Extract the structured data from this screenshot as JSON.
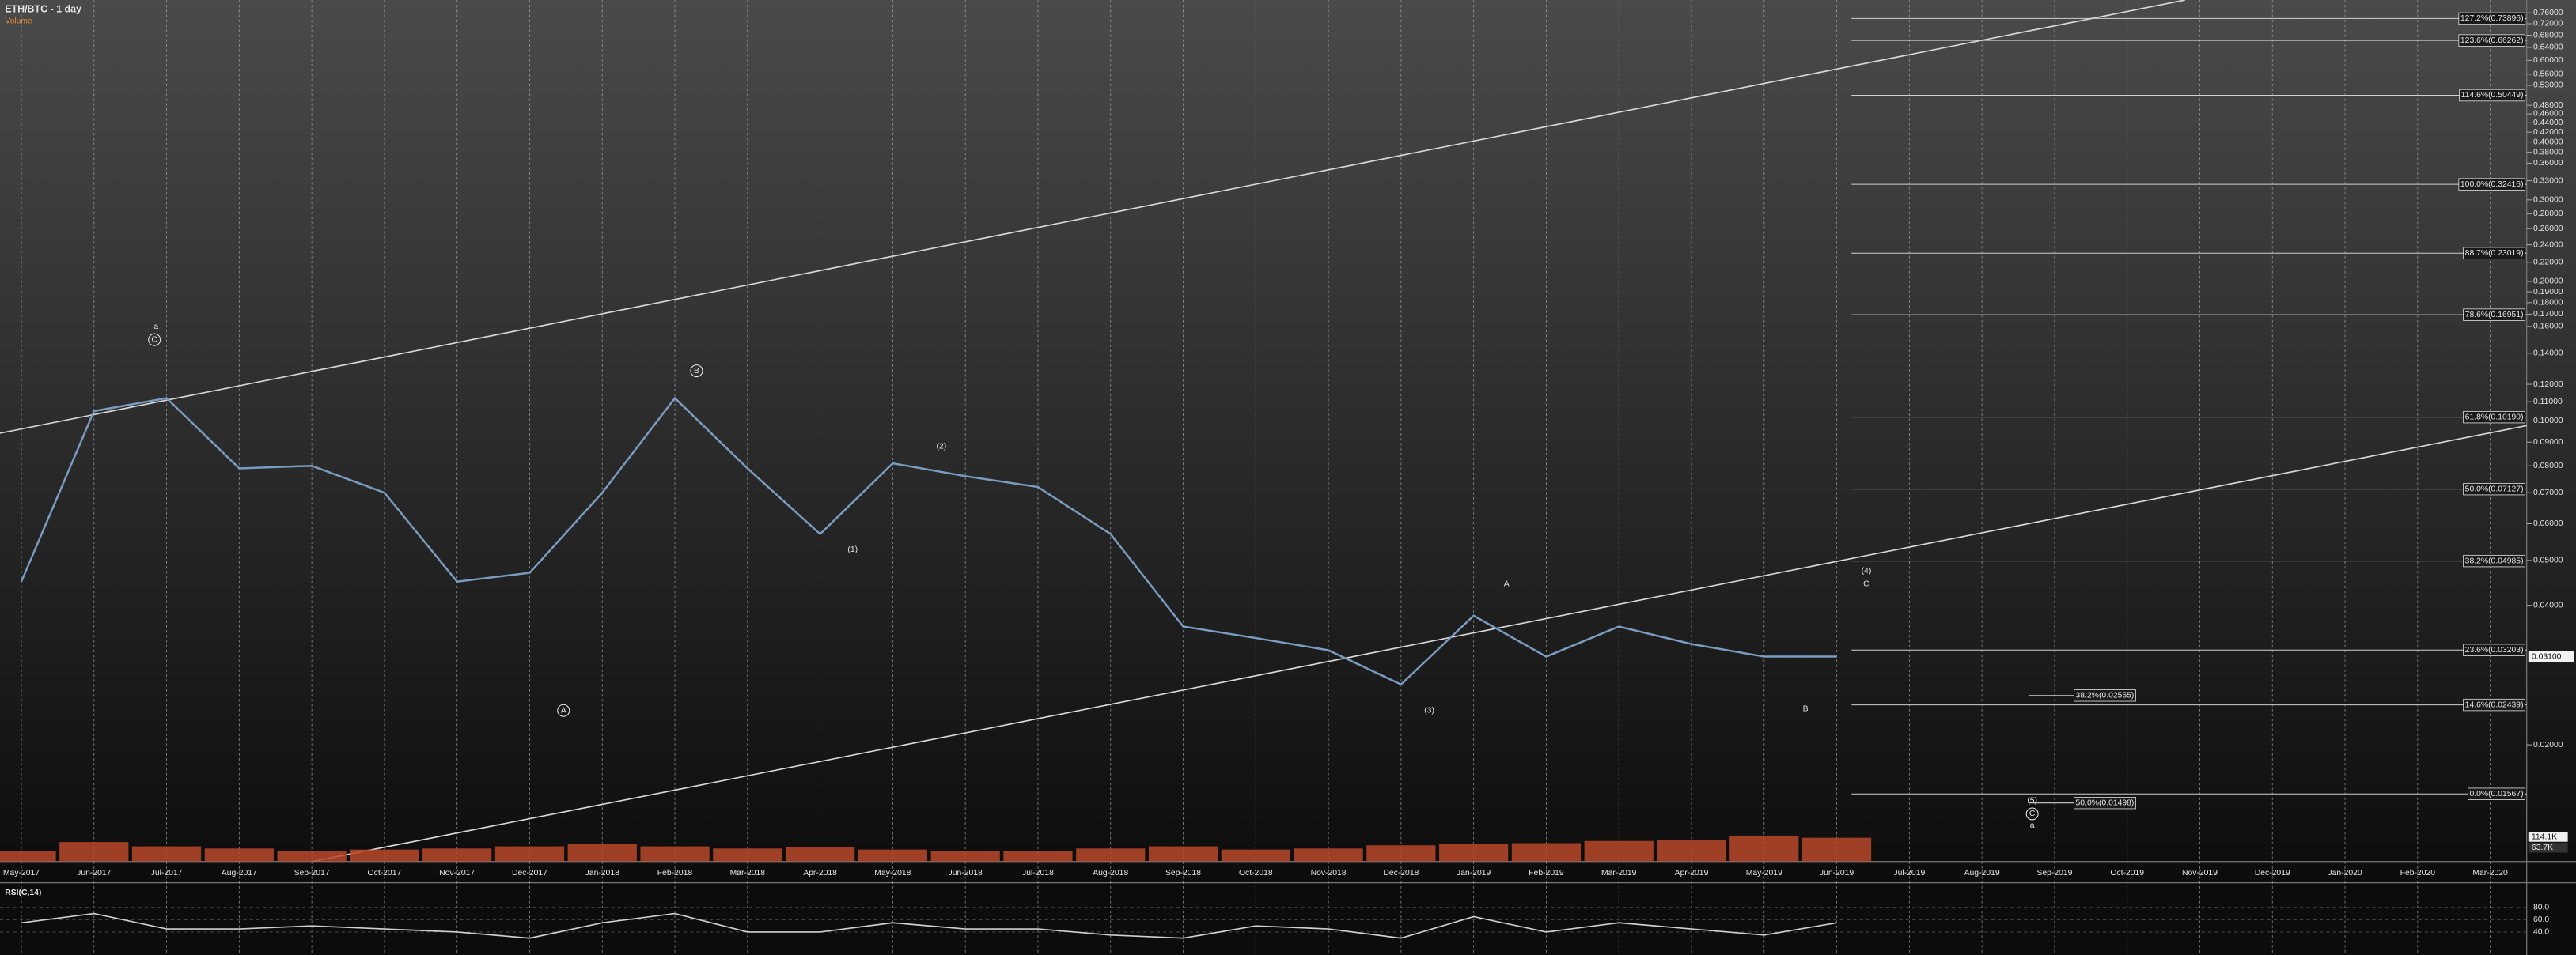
{
  "chart_data": {
    "type": "line",
    "title": "ETH/BTC - 1 day",
    "subtitle": "Volume",
    "categories": [
      "May-2017",
      "Jun-2017",
      "Jul-2017",
      "Aug-2017",
      "Sep-2017",
      "Oct-2017",
      "Nov-2017",
      "Dec-2017",
      "Jan-2018",
      "Feb-2018",
      "Mar-2018",
      "Apr-2018",
      "May-2018",
      "Jun-2018",
      "Jul-2018",
      "Aug-2018",
      "Sep-2018",
      "Oct-2018",
      "Nov-2018",
      "Dec-2018",
      "Jan-2019",
      "Feb-2019",
      "Mar-2019",
      "Apr-2019",
      "May-2019",
      "Jun-2019",
      "Jul-2019",
      "Aug-2019",
      "Sep-2019",
      "Oct-2019",
      "Nov-2019",
      "Dec-2019",
      "Jan-2020",
      "Feb-2020",
      "Mar-2020"
    ],
    "values": [
      0.045,
      0.105,
      0.112,
      0.079,
      0.08,
      0.07,
      0.045,
      0.047,
      0.07,
      0.112,
      0.079,
      0.057,
      0.081,
      0.076,
      0.072,
      0.057,
      0.036,
      0.034,
      0.032,
      0.027,
      0.038,
      0.031,
      0.036,
      0.033,
      0.031,
      0.031,
      null,
      null,
      null,
      null,
      null,
      null,
      null,
      null,
      null
    ],
    "color": "#7a9cc0",
    "log_scale": true,
    "grid": true,
    "ylim": [
      0.0112,
      0.81
    ],
    "yticks": [
      {
        "value": 0.76,
        "label": "0.76000"
      },
      {
        "value": 0.72,
        "label": "0.72000"
      },
      {
        "value": 0.68,
        "label": "0.68000"
      },
      {
        "value": 0.64,
        "label": "0.64000"
      },
      {
        "value": 0.6,
        "label": "0.60000"
      },
      {
        "value": 0.56,
        "label": "0.56000"
      },
      {
        "value": 0.53,
        "label": "0.53000"
      },
      {
        "value": 0.48,
        "label": "0.48000"
      },
      {
        "value": 0.46,
        "label": "0.46000"
      },
      {
        "value": 0.44,
        "label": "0.44000"
      },
      {
        "value": 0.42,
        "label": "0.42000"
      },
      {
        "value": 0.4,
        "label": "0.40000"
      },
      {
        "value": 0.38,
        "label": "0.38000"
      },
      {
        "value": 0.36,
        "label": "0.36000"
      },
      {
        "value": 0.33,
        "label": "0.33000"
      },
      {
        "value": 0.3,
        "label": "0.30000"
      },
      {
        "value": 0.28,
        "label": "0.28000"
      },
      {
        "value": 0.26,
        "label": "0.26000"
      },
      {
        "value": 0.24,
        "label": "0.24000"
      },
      {
        "value": 0.22,
        "label": "0.22000"
      },
      {
        "value": 0.2,
        "label": "0.20000"
      },
      {
        "value": 0.19,
        "label": "0.19000"
      },
      {
        "value": 0.18,
        "label": "0.18000"
      },
      {
        "value": 0.17,
        "label": "0.17000"
      },
      {
        "value": 0.16,
        "label": "0.16000"
      },
      {
        "value": 0.14,
        "label": "0.14000"
      },
      {
        "value": 0.12,
        "label": "0.12000"
      },
      {
        "value": 0.11,
        "label": "0.11000"
      },
      {
        "value": 0.1,
        "label": "0.10000"
      },
      {
        "value": 0.09,
        "label": "0.09000"
      },
      {
        "value": 0.08,
        "label": "0.08000"
      },
      {
        "value": 0.07,
        "label": "0.07000"
      },
      {
        "value": 0.06,
        "label": "0.06000"
      },
      {
        "value": 0.05,
        "label": "0.05000"
      },
      {
        "value": 0.04,
        "label": "0.04000"
      },
      {
        "value": 0.02,
        "label": "0.02000"
      }
    ],
    "last_price": {
      "value": 0.031,
      "label": "0.03100"
    },
    "fib_levels": [
      {
        "value": 0.73896,
        "label": "127.2%(0.73896)"
      },
      {
        "value": 0.66262,
        "label": "123.6%(0.66262)"
      },
      {
        "value": 0.50449,
        "label": "114.6%(0.50449)"
      },
      {
        "value": 0.32416,
        "label": "100.0%(0.32416)"
      },
      {
        "value": 0.23019,
        "label": "88.7%(0.23019)"
      },
      {
        "value": 0.16951,
        "label": "78.6%(0.16951)"
      },
      {
        "value": 0.1019,
        "label": "61.8%(0.10190)"
      },
      {
        "value": 0.07127,
        "label": "50.0%(0.07127)"
      },
      {
        "value": 0.04985,
        "label": "38.2%(0.04985)"
      },
      {
        "value": 0.03203,
        "label": "23.6%(0.03203)"
      },
      {
        "value": 0.02439,
        "label": "14.6%(0.02439)"
      },
      {
        "value": 0.01567,
        "label": "0.0%(0.01567)"
      }
    ],
    "projection_levels": [
      {
        "value": 0.02555,
        "label": "38.2%(0.02555)"
      },
      {
        "value": 0.01498,
        "label": "50.0%(0.01498)"
      }
    ],
    "annotations": [
      "a",
      "C",
      "B",
      "A",
      "(1)",
      "(2)",
      "(3)",
      "A",
      "B",
      "(4)",
      "C",
      "(5)",
      "C",
      "a"
    ],
    "volume": {
      "values": [
        50000,
        90000,
        70000,
        60000,
        50000,
        55000,
        60000,
        70000,
        80000,
        70000,
        60000,
        65000,
        55000,
        50000,
        50000,
        60000,
        70000,
        55000,
        60000,
        75000,
        80000,
        85000,
        95000,
        100000,
        120000,
        110000
      ],
      "color": "#b8482a",
      "ylim": [
        0,
        266000
      ],
      "last": [
        {
          "value": 114100,
          "label": "114.1K"
        },
        {
          "value": 63700,
          "label": "63.7K"
        }
      ]
    },
    "rsi": {
      "title": "RSI(C,14)",
      "values": [
        55,
        70,
        45,
        45,
        50,
        45,
        40,
        30,
        55,
        70,
        40,
        40,
        55,
        45,
        45,
        35,
        30,
        50,
        45,
        30,
        65,
        40,
        55,
        45,
        35,
        55
      ],
      "color": "#d0d0d0",
      "ylim": [
        0,
        100
      ],
      "yticks": [
        {
          "value": 80,
          "label": "80.0"
        },
        {
          "value": 60,
          "label": "60.0"
        },
        {
          "value": 40,
          "label": "40.0"
        }
      ]
    }
  }
}
